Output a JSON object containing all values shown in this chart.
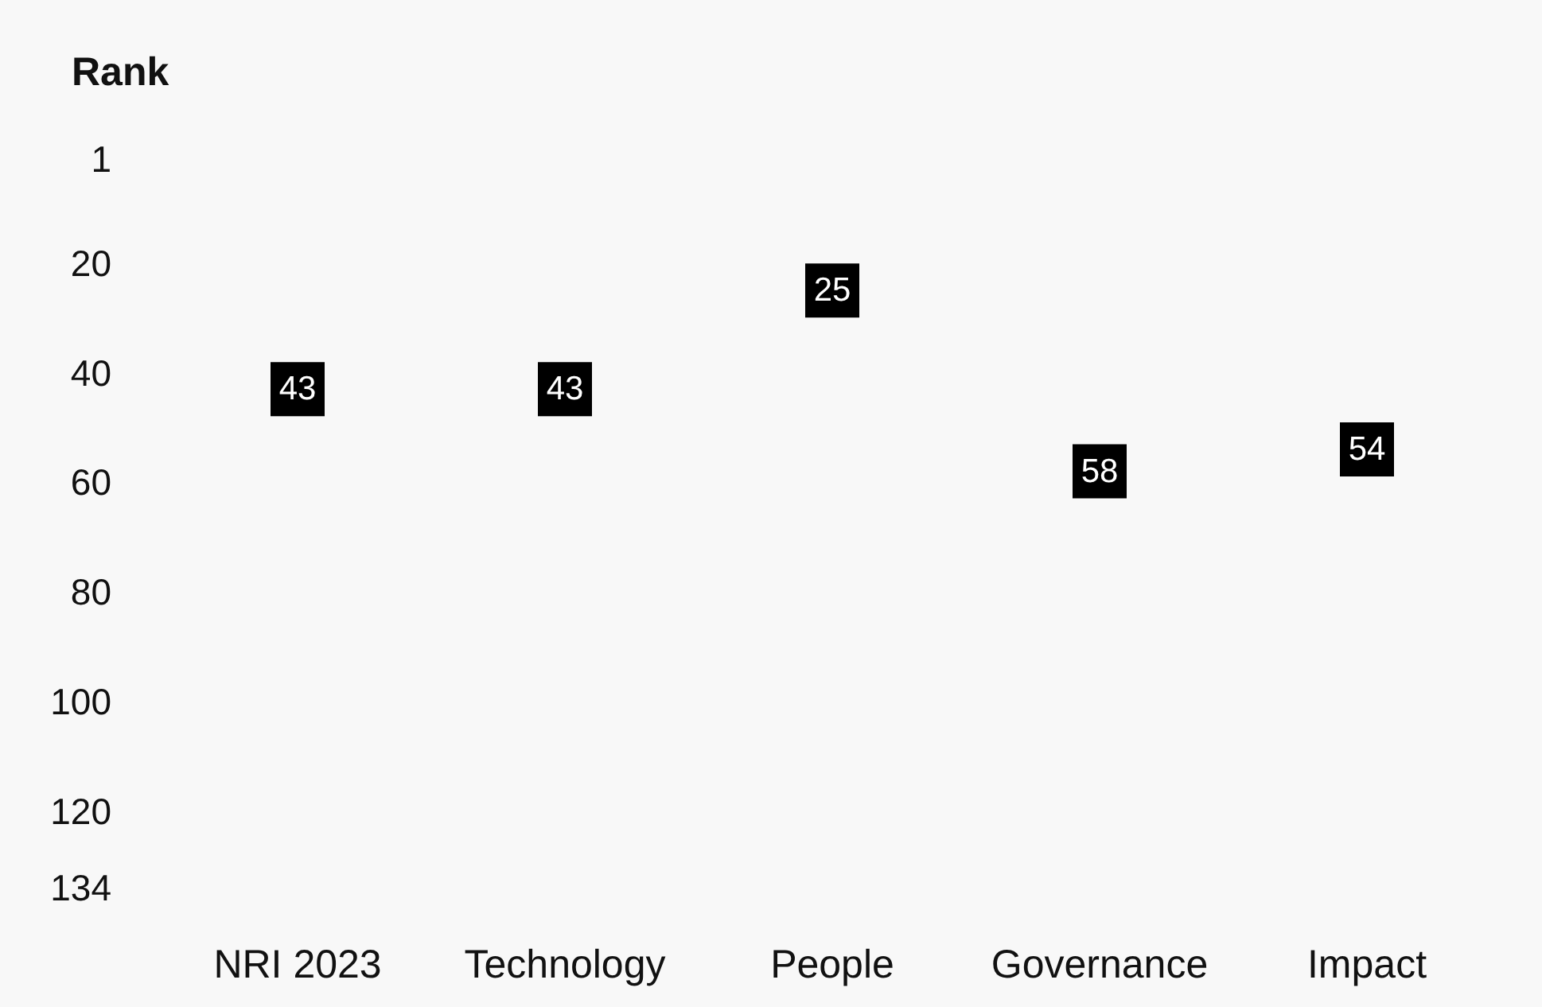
{
  "chart_data": {
    "type": "scatter",
    "ylabel": "Rank",
    "categories": [
      "NRI 2023",
      "Technology",
      "People",
      "Governance",
      "Impact"
    ],
    "values": [
      43,
      43,
      25,
      58,
      54
    ],
    "color": "#000000",
    "ylim": [
      134,
      1
    ],
    "yticks": [
      1,
      20,
      40,
      60,
      80,
      100,
      120,
      134
    ],
    "marker": "square",
    "data_labels": true
  }
}
